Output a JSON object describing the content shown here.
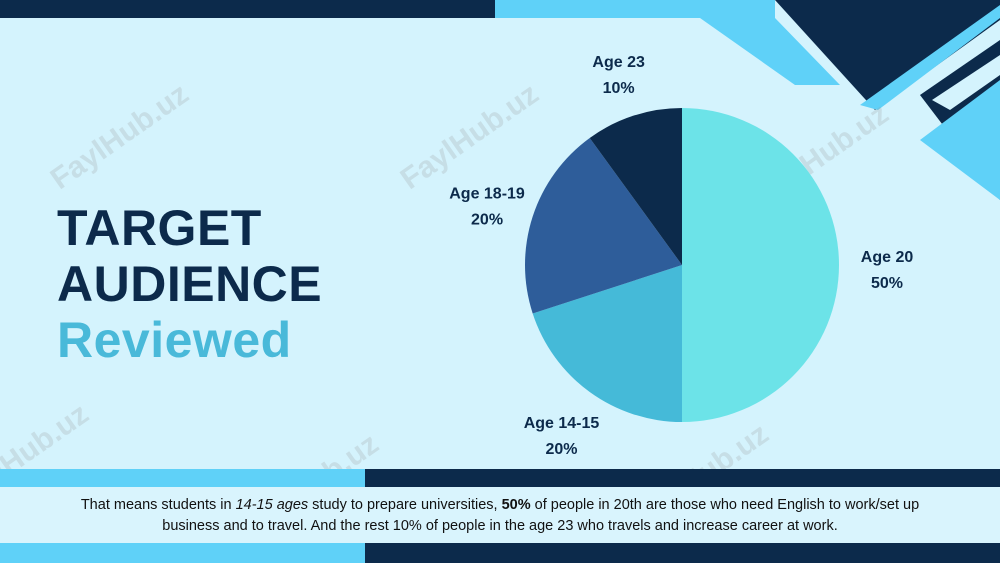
{
  "slide": {
    "title_line1": "TARGET",
    "title_line2": "AUDIENCE",
    "title_line3": "Reviewed",
    "caption": {
      "part1": "That means students in ",
      "em": "14-15 ages",
      "part2": " study to prepare universities, ",
      "strong": "50%",
      "part3": " of people in 20th are those who need English to work/set up business and to travel. And the rest 10% of people in the age 23 who travels and increase career at work."
    },
    "watermark": "FaylHub.uz"
  },
  "colors": {
    "dark_navy": "#0c2a4b",
    "accent_light_blue": "#5fd1f8",
    "title_accent": "#49b9d9",
    "background": "#d4f3fd"
  },
  "chart_data": {
    "type": "pie",
    "categories": [
      "Age 20",
      "Age 14-15",
      "Age 18-19",
      "Age 23"
    ],
    "values": [
      50,
      20,
      20,
      10
    ],
    "value_labels": [
      "50%",
      "20%",
      "20%",
      "10%"
    ],
    "colors": [
      "#6ce3e8",
      "#45bad8",
      "#2e5d9a",
      "#0c2a4b"
    ],
    "title": "",
    "legend": "none"
  }
}
